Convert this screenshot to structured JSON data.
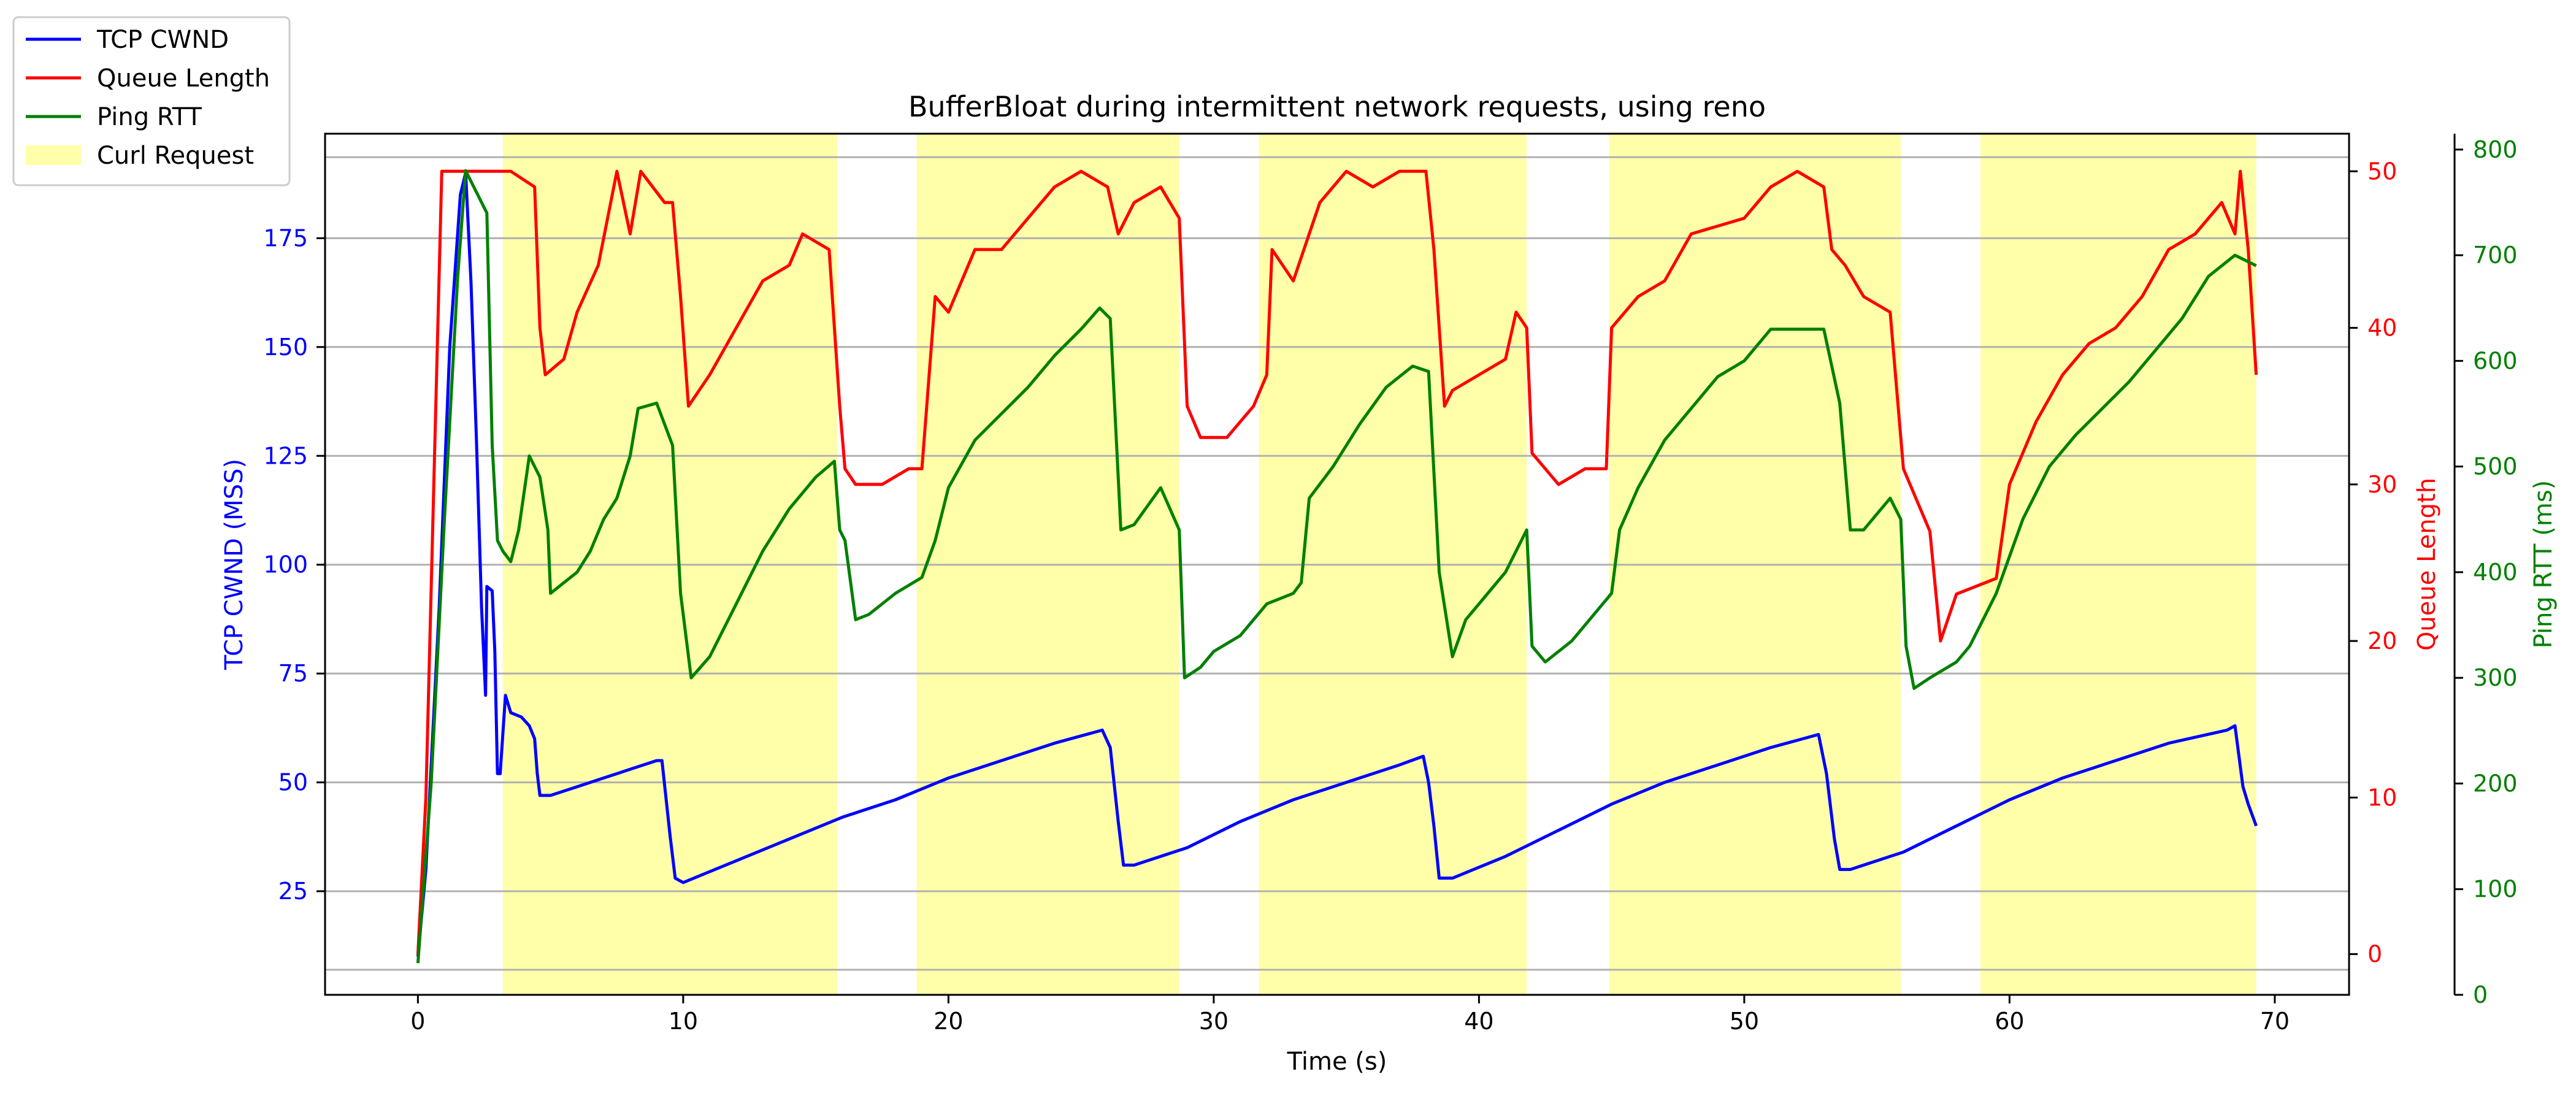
{
  "chart_data": {
    "type": "line",
    "title": "BufferBloat during intermittent network requests, using reno",
    "xlabel": "Time (s)",
    "xlim": [
      -3.5,
      72.8
    ],
    "xticks": [
      0,
      10,
      20,
      30,
      40,
      50,
      60,
      70
    ],
    "grid": true,
    "legend_position": "top-left",
    "axes": {
      "left": {
        "label": "TCP CWND (MSS)",
        "color": "#0000ff",
        "ylim": [
          1.2,
          199
        ],
        "ticks": [
          25,
          50,
          75,
          100,
          125,
          150,
          175
        ]
      },
      "right_inner": {
        "label": "Queue Length",
        "color": "#ff0000",
        "ylim": [
          -2.6,
          52.4
        ],
        "ticks": [
          0,
          10,
          20,
          30,
          40,
          50
        ]
      },
      "right_outer": {
        "label": "Ping RTT (ms)",
        "color": "#008000",
        "ylim": [
          0,
          815
        ],
        "ticks": [
          0,
          100,
          200,
          300,
          400,
          500,
          600,
          700,
          800
        ]
      }
    },
    "curl_requests": [
      [
        3.2,
        15.8
      ],
      [
        18.8,
        28.7
      ],
      [
        31.7,
        41.8
      ],
      [
        44.9,
        55.9
      ],
      [
        58.9,
        69.3
      ]
    ],
    "series": [
      {
        "name": "TCP CWND",
        "axis": "left",
        "color": "#0000ff",
        "points": [
          [
            0,
            10
          ],
          [
            0.3,
            30
          ],
          [
            0.8,
            90
          ],
          [
            1.2,
            150
          ],
          [
            1.6,
            185
          ],
          [
            1.8,
            190
          ],
          [
            2.0,
            165
          ],
          [
            2.2,
            130
          ],
          [
            2.4,
            90
          ],
          [
            2.55,
            70
          ],
          [
            2.6,
            95
          ],
          [
            2.8,
            94
          ],
          [
            2.9,
            80
          ],
          [
            3.0,
            52
          ],
          [
            3.1,
            52
          ],
          [
            3.3,
            70
          ],
          [
            3.5,
            66
          ],
          [
            3.9,
            65
          ],
          [
            4.2,
            63
          ],
          [
            4.4,
            60
          ],
          [
            4.5,
            52
          ],
          [
            4.6,
            47
          ],
          [
            5,
            47
          ],
          [
            6,
            49
          ],
          [
            7,
            51
          ],
          [
            8,
            53
          ],
          [
            9,
            55
          ],
          [
            9.2,
            55
          ],
          [
            9.5,
            38
          ],
          [
            9.7,
            28
          ],
          [
            10,
            27
          ],
          [
            12,
            32
          ],
          [
            14,
            37
          ],
          [
            16,
            42
          ],
          [
            18,
            46
          ],
          [
            20,
            51
          ],
          [
            22,
            55
          ],
          [
            24,
            59
          ],
          [
            25.8,
            62
          ],
          [
            26.1,
            58
          ],
          [
            26.4,
            41
          ],
          [
            26.6,
            31
          ],
          [
            27,
            31
          ],
          [
            29,
            35
          ],
          [
            31,
            41
          ],
          [
            33,
            46
          ],
          [
            35,
            50
          ],
          [
            37,
            54
          ],
          [
            37.9,
            56
          ],
          [
            38.1,
            50
          ],
          [
            38.3,
            40
          ],
          [
            38.5,
            28
          ],
          [
            39,
            28
          ],
          [
            41,
            33
          ],
          [
            43,
            39
          ],
          [
            45,
            45
          ],
          [
            47,
            50
          ],
          [
            49,
            54
          ],
          [
            51,
            58
          ],
          [
            52.8,
            61
          ],
          [
            53.1,
            52
          ],
          [
            53.4,
            37
          ],
          [
            53.6,
            30
          ],
          [
            54,
            30
          ],
          [
            56,
            34
          ],
          [
            58,
            40
          ],
          [
            60,
            46
          ],
          [
            62,
            51
          ],
          [
            64,
            55
          ],
          [
            66,
            59
          ],
          [
            68.2,
            62
          ],
          [
            68.5,
            63
          ],
          [
            68.8,
            49
          ],
          [
            69,
            45
          ],
          [
            69.3,
            40
          ]
        ]
      },
      {
        "name": "Queue Length",
        "axis": "right_inner",
        "color": "#ff0000",
        "points": [
          [
            0,
            0
          ],
          [
            0.3,
            10
          ],
          [
            0.6,
            30
          ],
          [
            0.9,
            50
          ],
          [
            1.5,
            50
          ],
          [
            2.5,
            50
          ],
          [
            3.0,
            50
          ],
          [
            3.5,
            50
          ],
          [
            4.4,
            49
          ],
          [
            4.6,
            40
          ],
          [
            4.8,
            37
          ],
          [
            5.5,
            38
          ],
          [
            6.0,
            41
          ],
          [
            6.8,
            44
          ],
          [
            7.5,
            50
          ],
          [
            8.0,
            46
          ],
          [
            8.4,
            50
          ],
          [
            9.3,
            48
          ],
          [
            9.6,
            48
          ],
          [
            9.9,
            42
          ],
          [
            10.2,
            35
          ],
          [
            11,
            37
          ],
          [
            12,
            40
          ],
          [
            13,
            43
          ],
          [
            14,
            44
          ],
          [
            14.5,
            46
          ],
          [
            15.5,
            45
          ],
          [
            15.9,
            35
          ],
          [
            16.1,
            31
          ],
          [
            16.5,
            30
          ],
          [
            17.5,
            30
          ],
          [
            18.5,
            31
          ],
          [
            19,
            31
          ],
          [
            19.5,
            42
          ],
          [
            20,
            41
          ],
          [
            21,
            45
          ],
          [
            22,
            45
          ],
          [
            23,
            47
          ],
          [
            24,
            49
          ],
          [
            25,
            50
          ],
          [
            26,
            49
          ],
          [
            26.4,
            46
          ],
          [
            27,
            48
          ],
          [
            28,
            49
          ],
          [
            28.7,
            47
          ],
          [
            29,
            35
          ],
          [
            29.5,
            33
          ],
          [
            30.5,
            33
          ],
          [
            31.5,
            35
          ],
          [
            32,
            37
          ],
          [
            32.2,
            45
          ],
          [
            33,
            43
          ],
          [
            34,
            48
          ],
          [
            35,
            50
          ],
          [
            36,
            49
          ],
          [
            37,
            50
          ],
          [
            38,
            50
          ],
          [
            38.3,
            45
          ],
          [
            38.7,
            35
          ],
          [
            39,
            36
          ],
          [
            40,
            37
          ],
          [
            41,
            38
          ],
          [
            41.4,
            41
          ],
          [
            41.8,
            40
          ],
          [
            42,
            32
          ],
          [
            43,
            30
          ],
          [
            44,
            31
          ],
          [
            44.8,
            31
          ],
          [
            45,
            40
          ],
          [
            46,
            42
          ],
          [
            47,
            43
          ],
          [
            48,
            46
          ],
          [
            50,
            47
          ],
          [
            51,
            49
          ],
          [
            52,
            50
          ],
          [
            53,
            49
          ],
          [
            53.3,
            45
          ],
          [
            53.8,
            44
          ],
          [
            54.5,
            42
          ],
          [
            55.5,
            41
          ],
          [
            56,
            31
          ],
          [
            56.5,
            29
          ],
          [
            57,
            27
          ],
          [
            57.4,
            20
          ],
          [
            58,
            23
          ],
          [
            59.5,
            24
          ],
          [
            60,
            30
          ],
          [
            61,
            34
          ],
          [
            62,
            37
          ],
          [
            63,
            39
          ],
          [
            64,
            40
          ],
          [
            65,
            42
          ],
          [
            66,
            45
          ],
          [
            67,
            46
          ],
          [
            68,
            48
          ],
          [
            68.5,
            46
          ],
          [
            68.7,
            50
          ],
          [
            69,
            45
          ],
          [
            69.3,
            37
          ]
        ]
      },
      {
        "name": "Ping RTT",
        "axis": "right_outer",
        "color": "#008000",
        "points": [
          [
            0,
            30
          ],
          [
            0.5,
            200
          ],
          [
            1.0,
            450
          ],
          [
            1.5,
            680
          ],
          [
            1.8,
            780
          ],
          [
            2.2,
            760
          ],
          [
            2.6,
            740
          ],
          [
            2.8,
            520
          ],
          [
            3.0,
            430
          ],
          [
            3.2,
            420
          ],
          [
            3.5,
            410
          ],
          [
            3.8,
            440
          ],
          [
            4.2,
            510
          ],
          [
            4.6,
            490
          ],
          [
            4.9,
            440
          ],
          [
            5.0,
            380
          ],
          [
            5.5,
            390
          ],
          [
            6.0,
            400
          ],
          [
            6.5,
            420
          ],
          [
            7.0,
            450
          ],
          [
            7.5,
            470
          ],
          [
            8.0,
            510
          ],
          [
            8.3,
            555
          ],
          [
            9.0,
            560
          ],
          [
            9.3,
            540
          ],
          [
            9.6,
            520
          ],
          [
            9.9,
            380
          ],
          [
            10.3,
            300
          ],
          [
            11,
            320
          ],
          [
            12,
            370
          ],
          [
            13,
            420
          ],
          [
            14,
            460
          ],
          [
            15,
            490
          ],
          [
            15.7,
            505
          ],
          [
            15.9,
            440
          ],
          [
            16.1,
            430
          ],
          [
            16.5,
            355
          ],
          [
            17,
            360
          ],
          [
            18,
            380
          ],
          [
            19,
            395
          ],
          [
            19.5,
            430
          ],
          [
            20,
            480
          ],
          [
            21,
            525
          ],
          [
            22,
            550
          ],
          [
            23,
            575
          ],
          [
            24,
            605
          ],
          [
            25,
            630
          ],
          [
            25.7,
            650
          ],
          [
            26.1,
            640
          ],
          [
            26.5,
            440
          ],
          [
            27,
            445
          ],
          [
            28,
            480
          ],
          [
            28.7,
            440
          ],
          [
            28.9,
            300
          ],
          [
            29.5,
            310
          ],
          [
            30,
            325
          ],
          [
            31,
            340
          ],
          [
            32,
            370
          ],
          [
            33,
            380
          ],
          [
            33.3,
            390
          ],
          [
            33.6,
            470
          ],
          [
            34.5,
            500
          ],
          [
            35.5,
            540
          ],
          [
            36.5,
            575
          ],
          [
            37.5,
            595
          ],
          [
            38.1,
            590
          ],
          [
            38.5,
            400
          ],
          [
            39,
            320
          ],
          [
            39.5,
            355
          ],
          [
            40,
            370
          ],
          [
            41,
            400
          ],
          [
            41.8,
            440
          ],
          [
            42,
            330
          ],
          [
            42.5,
            315
          ],
          [
            43.5,
            335
          ],
          [
            44.5,
            365
          ],
          [
            45,
            380
          ],
          [
            45.3,
            440
          ],
          [
            46,
            480
          ],
          [
            47,
            525
          ],
          [
            48,
            555
          ],
          [
            49,
            585
          ],
          [
            50,
            600
          ],
          [
            51,
            630
          ],
          [
            52,
            630
          ],
          [
            53,
            630
          ],
          [
            53.6,
            560
          ],
          [
            54,
            440
          ],
          [
            54.5,
            440
          ],
          [
            55.5,
            470
          ],
          [
            55.9,
            450
          ],
          [
            56.1,
            330
          ],
          [
            56.4,
            290
          ],
          [
            57,
            300
          ],
          [
            58,
            315
          ],
          [
            58.5,
            330
          ],
          [
            59.5,
            380
          ],
          [
            60.5,
            450
          ],
          [
            61.5,
            500
          ],
          [
            62.5,
            530
          ],
          [
            63.5,
            555
          ],
          [
            64.5,
            580
          ],
          [
            65.5,
            610
          ],
          [
            66.5,
            640
          ],
          [
            67.5,
            680
          ],
          [
            68.5,
            700
          ],
          [
            69.3,
            690
          ]
        ]
      }
    ],
    "legend": {
      "entries": [
        {
          "label": "TCP CWND",
          "kind": "line",
          "color": "#0000ff"
        },
        {
          "label": "Queue Length",
          "kind": "line",
          "color": "#ff0000"
        },
        {
          "label": "Ping RTT",
          "kind": "line",
          "color": "#008000"
        },
        {
          "label": "Curl Request",
          "kind": "patch",
          "color": "#ffffaa"
        }
      ]
    }
  }
}
